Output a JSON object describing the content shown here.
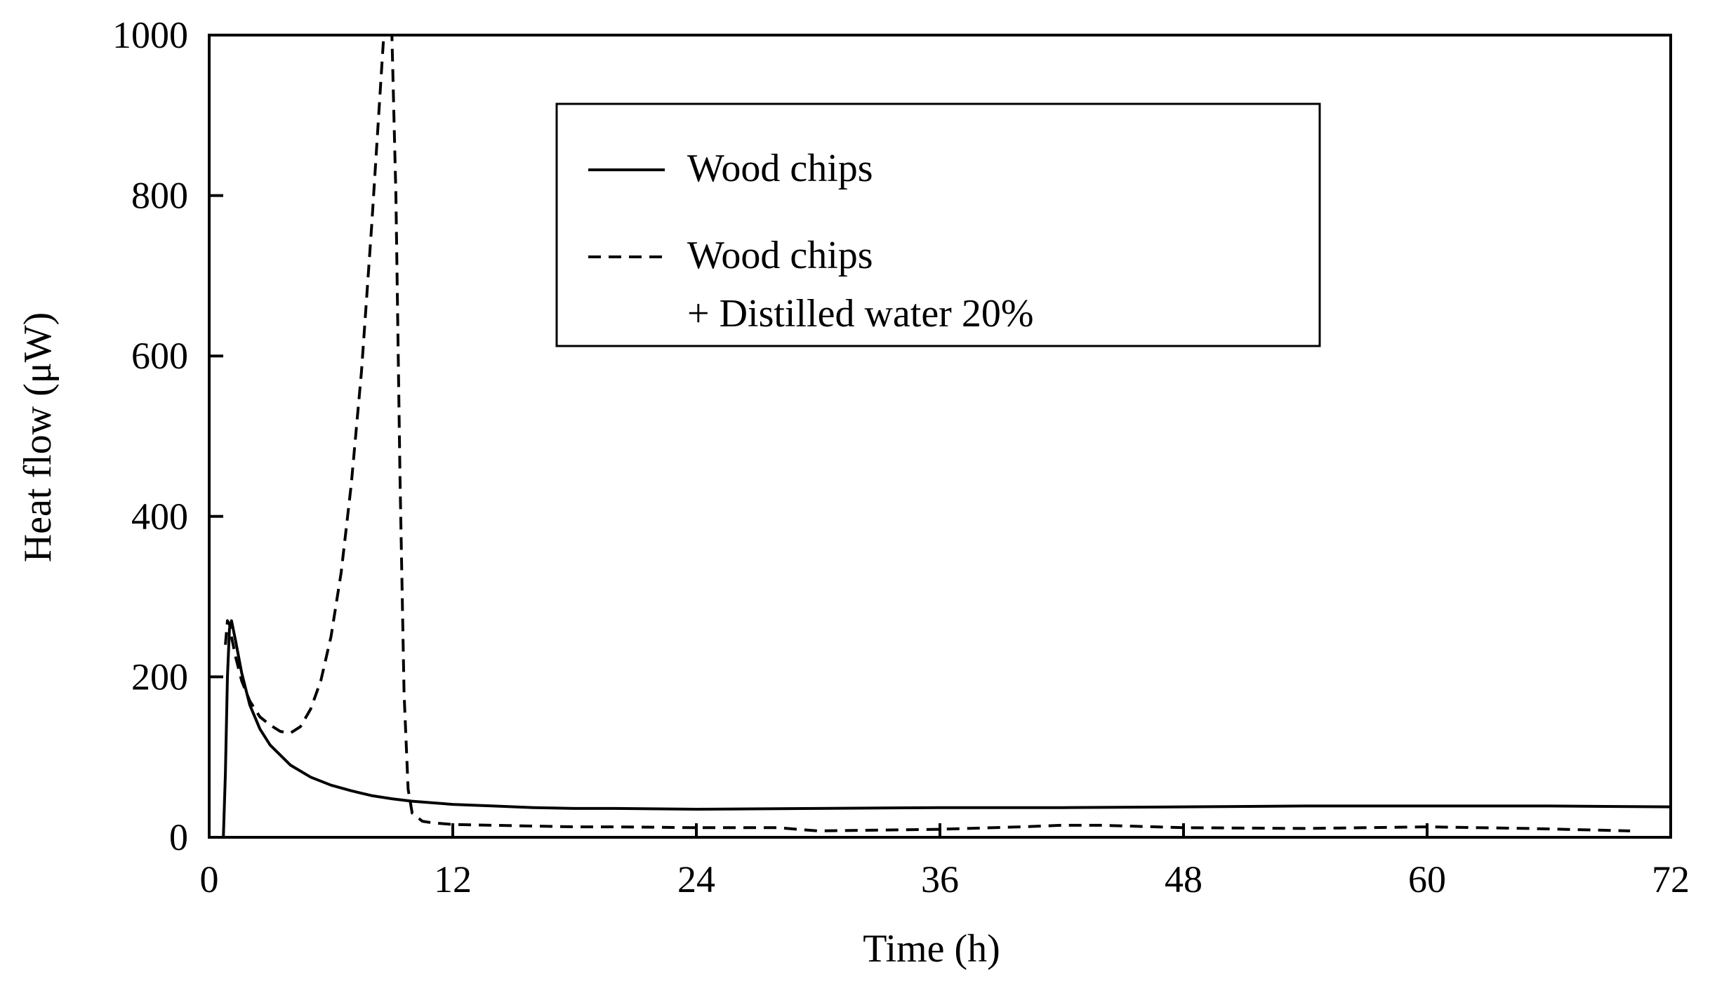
{
  "chart_data": {
    "type": "line",
    "xlabel": "Time (h)",
    "ylabel": "Heat flow (μW)",
    "xlim": [
      0,
      72
    ],
    "ylim": [
      0,
      1000
    ],
    "xticks": [
      0,
      12,
      24,
      36,
      48,
      60,
      72
    ],
    "yticks": [
      0,
      200,
      400,
      600,
      800,
      1000
    ],
    "xtick_labels": [
      "0",
      "12",
      "24",
      "36",
      "48",
      "60",
      "72"
    ],
    "ytick_labels": [
      "0",
      "200",
      "400",
      "600",
      "800",
      "1000"
    ],
    "grid": false,
    "legend_position": "top-center",
    "series": [
      {
        "name": "Wood chips",
        "line_style": "solid",
        "color": "#000000",
        "x": [
          0.7,
          0.8,
          0.9,
          1.0,
          1.1,
          1.3,
          1.6,
          2.0,
          2.5,
          3.0,
          4.0,
          5.0,
          6.0,
          7.0,
          8.0,
          9.0,
          10.0,
          12.0,
          14.0,
          16.0,
          18.0,
          20.0,
          24.0,
          30.0,
          36.0,
          42.0,
          48.0,
          54.0,
          60.0,
          66.0,
          72.0
        ],
        "y": [
          0,
          80,
          200,
          260,
          270,
          245,
          205,
          165,
          135,
          115,
          90,
          75,
          65,
          58,
          52,
          48,
          45,
          41,
          39,
          37,
          36,
          36,
          35,
          36,
          37,
          37,
          38,
          39,
          39,
          39,
          38
        ]
      },
      {
        "name": "Wood chips\n+ Distilled water 20%",
        "legend_lines": [
          "Wood chips",
          "+ Distilled water 20%"
        ],
        "line_style": "dashed",
        "color": "#000000",
        "x": [
          0.8,
          0.9,
          1.0,
          1.1,
          1.3,
          1.6,
          2.0,
          2.5,
          3.0,
          3.5,
          4.0,
          4.5,
          5.0,
          5.5,
          6.0,
          6.5,
          7.0,
          7.5,
          8.0,
          8.3,
          8.6,
          9.0,
          9.2,
          9.4,
          9.6,
          9.8,
          10.0,
          10.5,
          11.0,
          12.0,
          14.0,
          16.0,
          18.0,
          20.0,
          24.0,
          28.0,
          30.0,
          36.0,
          40.0,
          42.0,
          44.0,
          48.0,
          54.0,
          57.0,
          60.0,
          65.0,
          70.0
        ],
        "y": [
          240,
          270,
          265,
          250,
          225,
          195,
          170,
          150,
          140,
          132,
          130,
          138,
          160,
          195,
          250,
          330,
          440,
          580,
          760,
          880,
          1000,
          1000,
          800,
          450,
          180,
          60,
          30,
          20,
          18,
          16,
          15,
          14,
          13,
          13,
          12,
          12,
          8,
          10,
          13,
          15,
          15,
          12,
          11,
          12,
          13,
          11,
          8
        ]
      }
    ]
  }
}
